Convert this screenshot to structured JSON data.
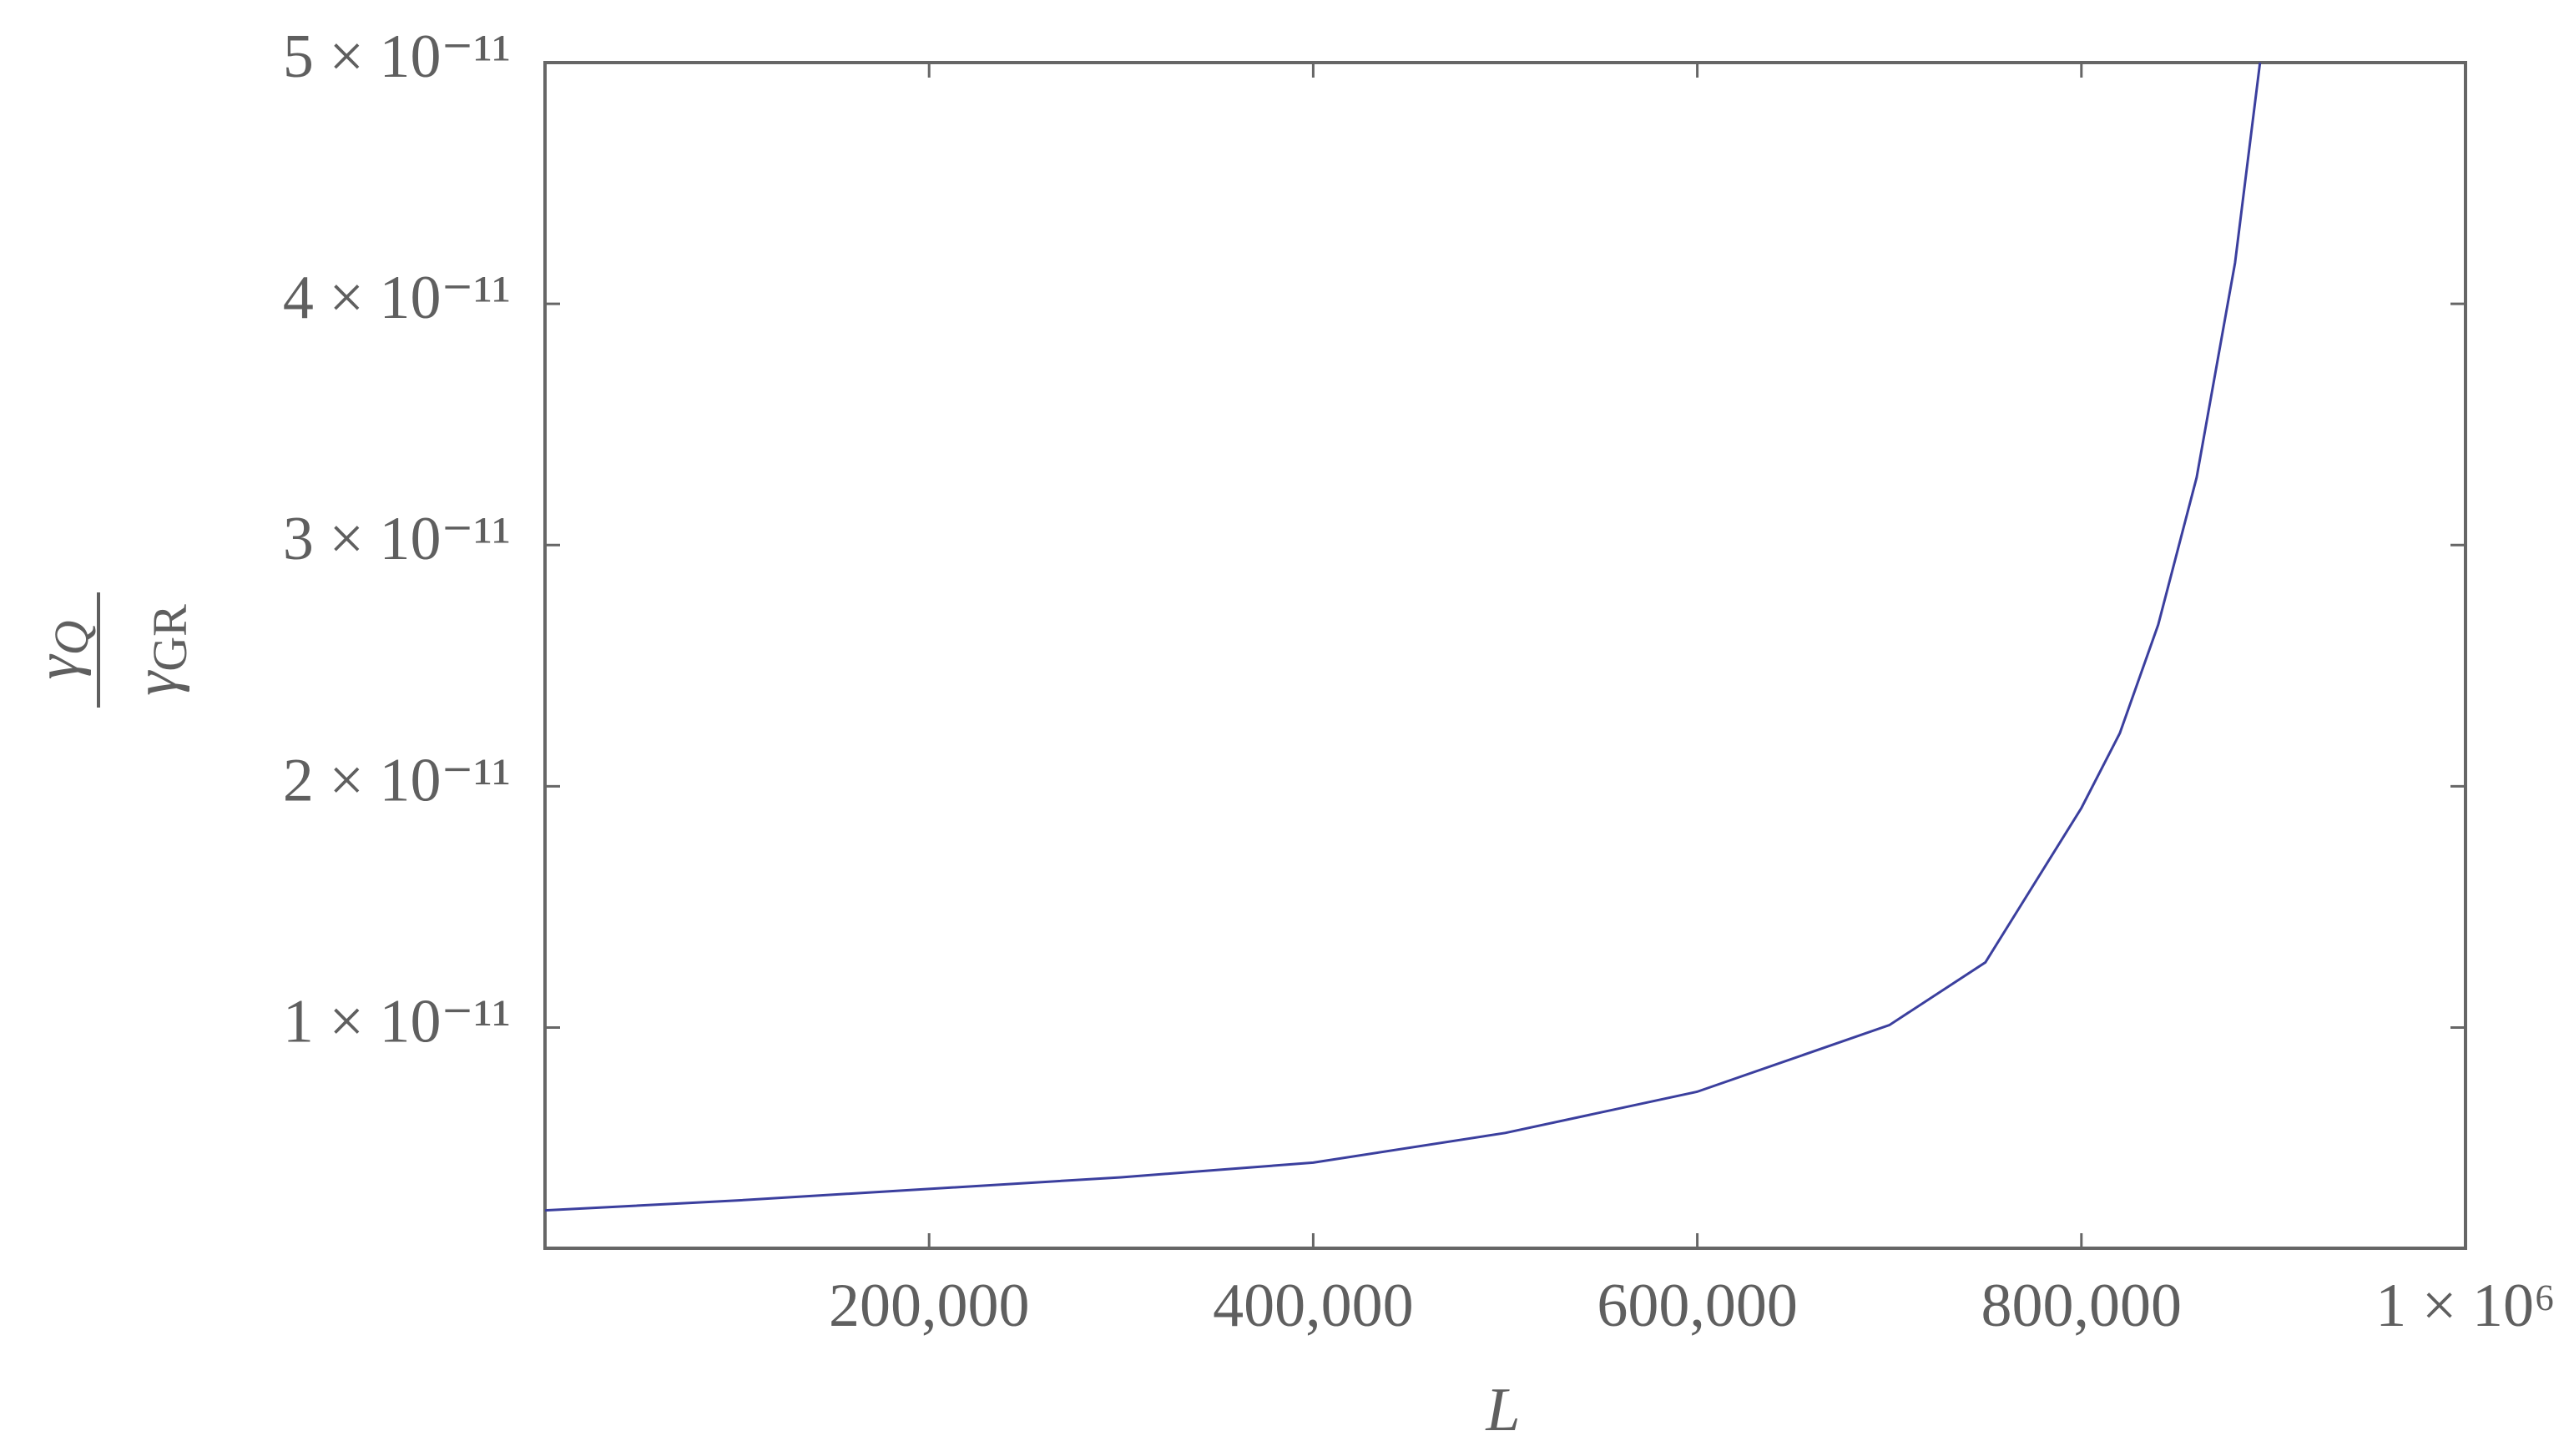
{
  "chart_data": {
    "type": "line",
    "x_label": "L",
    "y_label": {
      "numerator": {
        "symbol": "γ",
        "subscript": "Q"
      },
      "denominator": {
        "symbol": "γ",
        "subscript": "GR"
      }
    },
    "x": [
      0,
      100000,
      200000,
      300000,
      400000,
      500000,
      600000,
      700000,
      750000,
      800000,
      820000,
      840000,
      860000,
      880000,
      893000
    ],
    "values": [
      2.42e-12,
      2.83e-12,
      3.31e-12,
      3.79e-12,
      4.4e-12,
      5.63e-12,
      7.34e-12,
      1.01e-11,
      1.27e-11,
      1.91e-11,
      2.22e-11,
      2.67e-11,
      3.28e-11,
      4.17e-11,
      5e-11
    ],
    "color": "#3b3f9e",
    "xlim": [
      0,
      1000000
    ],
    "ylim": [
      8.5e-13,
      5e-11
    ],
    "xticks": [
      {
        "value": 200000,
        "label": "200,000"
      },
      {
        "value": 400000,
        "label": "400,000"
      },
      {
        "value": 600000,
        "label": "600,000"
      },
      {
        "value": 800000,
        "label": "800,000"
      },
      {
        "value": 1000000,
        "label": "1 × 10⁶"
      }
    ],
    "yticks": [
      {
        "value": 1e-11,
        "label": "1 × 10⁻¹¹"
      },
      {
        "value": 2e-11,
        "label": "2 × 10⁻¹¹"
      },
      {
        "value": 3e-11,
        "label": "3 × 10⁻¹¹"
      },
      {
        "value": 4e-11,
        "label": "4 × 10⁻¹¹"
      },
      {
        "value": 5e-11,
        "label": "5 × 10⁻¹¹"
      }
    ]
  }
}
